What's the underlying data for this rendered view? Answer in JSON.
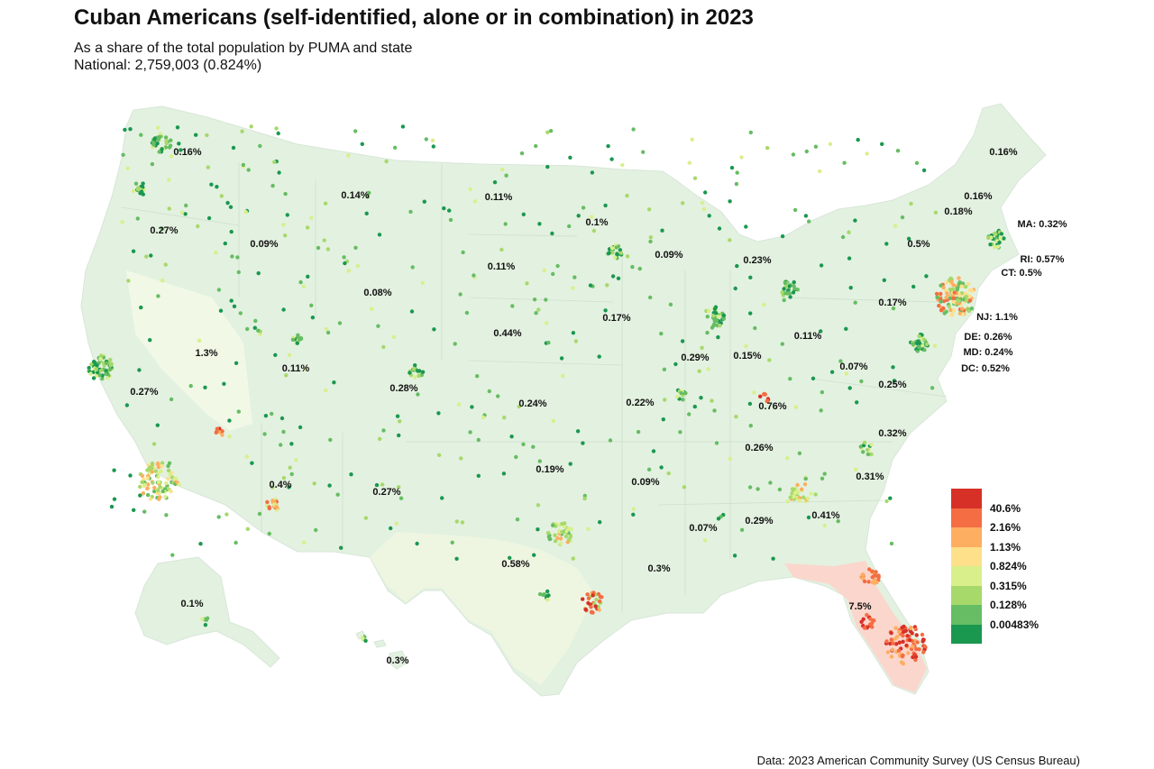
{
  "title": "Cuban Americans (self-identified, alone or in combination) in 2023",
  "subtitle_line1": "As a share of the total population by PUMA and state",
  "subtitle_line2": "National: 2,759,003 (0.824%)",
  "source": "Data: 2023 American Community Survey (US Census Bureau)",
  "legend": [
    {
      "label": "40.6%",
      "color": "#d73027"
    },
    {
      "label": "2.16%",
      "color": "#f46d43"
    },
    {
      "label": "1.13%",
      "color": "#fdae61"
    },
    {
      "label": "0.824%",
      "color": "#fee08b"
    },
    {
      "label": "0.315%",
      "color": "#d9ef8b"
    },
    {
      "label": "0.128%",
      "color": "#a6d96a"
    },
    {
      "label": "0.00483%",
      "color": "#66bd63"
    },
    {
      "label": "",
      "color": "#1a9850"
    }
  ],
  "state_labels": [
    {
      "state": "WA",
      "text": "0.16%"
    },
    {
      "state": "OR",
      "text": "0.27%"
    },
    {
      "state": "ID",
      "text": "0.09%"
    },
    {
      "state": "MT",
      "text": "0.14%"
    },
    {
      "state": "ND",
      "text": "0.11%"
    },
    {
      "state": "SD",
      "text": "0.11%"
    },
    {
      "state": "MN",
      "text": "0.1%"
    },
    {
      "state": "WI",
      "text": "0.09%"
    },
    {
      "state": "MI",
      "text": "0.23%"
    },
    {
      "state": "WY",
      "text": "0.08%"
    },
    {
      "state": "NE",
      "text": "0.44%"
    },
    {
      "state": "IA",
      "text": "0.17%"
    },
    {
      "state": "NV",
      "text": "1.3%"
    },
    {
      "state": "UT",
      "text": "0.11%"
    },
    {
      "state": "CO",
      "text": "0.28%"
    },
    {
      "state": "CA",
      "text": "0.27%"
    },
    {
      "state": "KS",
      "text": "0.24%"
    },
    {
      "state": "MO",
      "text": "0.22%"
    },
    {
      "state": "IL",
      "text": "0.29%"
    },
    {
      "state": "IN",
      "text": "0.15%"
    },
    {
      "state": "OH",
      "text": "0.11%"
    },
    {
      "state": "WV",
      "text": "0.07%"
    },
    {
      "state": "PA",
      "text": "0.17%"
    },
    {
      "state": "VA",
      "text": "0.25%"
    },
    {
      "state": "KY",
      "text": "0.76%"
    },
    {
      "state": "TN",
      "text": "0.26%"
    },
    {
      "state": "NC",
      "text": "0.32%"
    },
    {
      "state": "SC",
      "text": "0.31%"
    },
    {
      "state": "GA",
      "text": "0.41%"
    },
    {
      "state": "AL",
      "text": "0.29%"
    },
    {
      "state": "MS",
      "text": "0.07%"
    },
    {
      "state": "AR",
      "text": "0.09%"
    },
    {
      "state": "OK",
      "text": "0.19%"
    },
    {
      "state": "AZ",
      "text": "0.4%"
    },
    {
      "state": "NM",
      "text": "0.27%"
    },
    {
      "state": "TX",
      "text": "0.58%"
    },
    {
      "state": "LA",
      "text": "0.3%"
    },
    {
      "state": "FL",
      "text": "7.5%"
    },
    {
      "state": "AK",
      "text": "0.1%"
    },
    {
      "state": "HI",
      "text": "0.3%"
    },
    {
      "state": "ME",
      "text": "0.16%"
    },
    {
      "state": "NH",
      "text": "0.16%"
    },
    {
      "state": "VT",
      "text": "0.18%"
    },
    {
      "state": "NY",
      "text": "0.5%"
    },
    {
      "state": "MA",
      "text": "MA: 0.32%"
    },
    {
      "state": "RI",
      "text": "RI: 0.57%"
    },
    {
      "state": "CT",
      "text": "CT: 0.5%"
    },
    {
      "state": "NJ",
      "text": "NJ: 1.1%"
    },
    {
      "state": "DE",
      "text": "DE: 0.26%"
    },
    {
      "state": "MD",
      "text": "MD: 0.24%"
    },
    {
      "state": "DC",
      "text": "DC: 0.52%"
    }
  ]
}
